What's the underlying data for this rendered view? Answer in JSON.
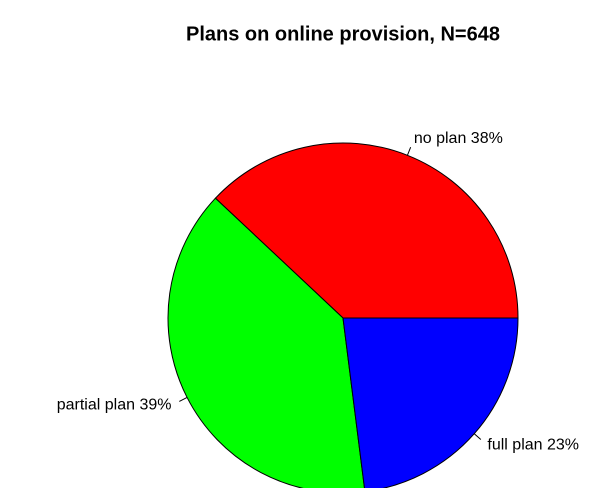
{
  "chart_data": {
    "type": "pie",
    "title": "Plans on online provision, N=648",
    "categories": [
      "no plan 38%",
      "partial plan 39%",
      "full plan 23%"
    ],
    "values": [
      38,
      39,
      23
    ],
    "colors": [
      "#ff0000",
      "#00ff00",
      "#0000ff"
    ]
  }
}
